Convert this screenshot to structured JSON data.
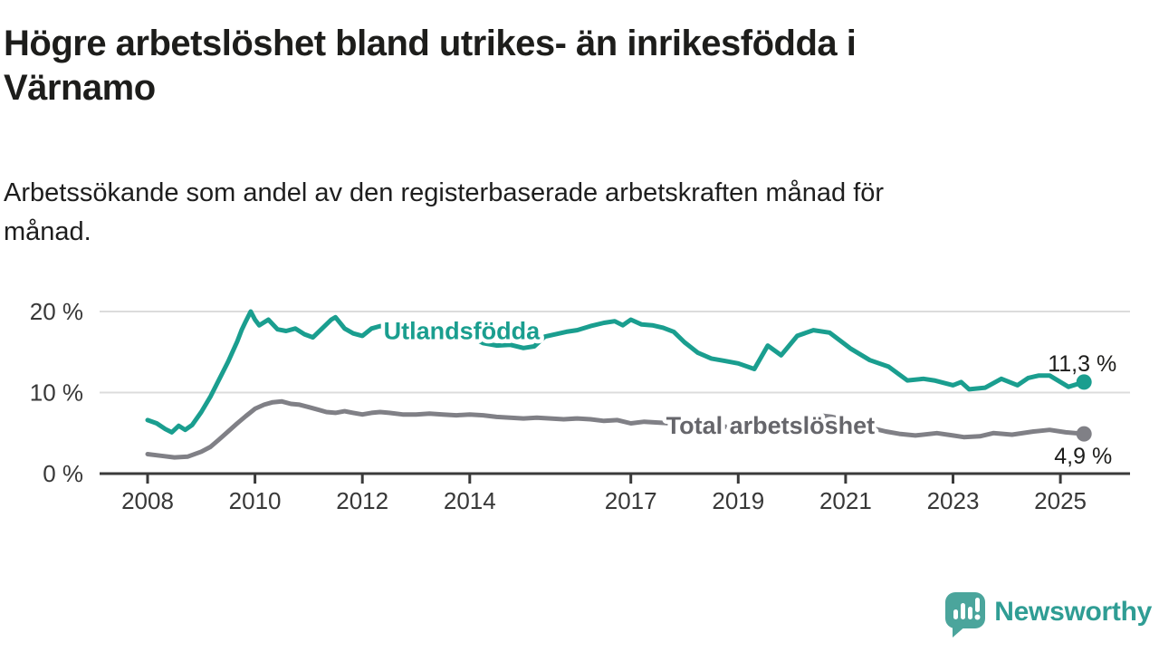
{
  "chart_data": {
    "type": "line",
    "title": "Högre arbetslöshet bland utrikes- än inrikesfödda i\nVärnamo",
    "subtitle": "Arbetssökande som andel av den registerbaserade arbetskraften månad för\nmånad.",
    "unit": "%",
    "grid": "horizontal-only",
    "legend_position": "inline-labels",
    "x_axis": {
      "ticks": [
        2008,
        2010,
        2012,
        2014,
        2017,
        2019,
        2021,
        2023,
        2025
      ],
      "tick_labels": [
        "2008",
        "2010",
        "2012",
        "2014",
        "2017",
        "2019",
        "2021",
        "2023",
        "2025"
      ],
      "range": [
        2007.1,
        2026.3
      ]
    },
    "y_axis": {
      "ticks": [
        0,
        10,
        20
      ],
      "tick_labels": [
        "0 %",
        "10 %",
        "20 %"
      ],
      "range": [
        0,
        21
      ]
    },
    "series": [
      {
        "id": "utlandsfodda",
        "name": "Utlandsfödda",
        "color": "#1a9e8f",
        "end_value": 11.3,
        "end_label": "11,3 %",
        "points": [
          [
            2008.0,
            6.6
          ],
          [
            2008.17,
            6.2
          ],
          [
            2008.33,
            5.5
          ],
          [
            2008.45,
            5.1
          ],
          [
            2008.58,
            5.9
          ],
          [
            2008.7,
            5.4
          ],
          [
            2008.83,
            6.0
          ],
          [
            2009.0,
            7.6
          ],
          [
            2009.17,
            9.5
          ],
          [
            2009.33,
            11.6
          ],
          [
            2009.5,
            13.8
          ],
          [
            2009.67,
            16.3
          ],
          [
            2009.75,
            17.7
          ],
          [
            2009.83,
            18.8
          ],
          [
            2009.92,
            20.0
          ],
          [
            2010.0,
            19.0
          ],
          [
            2010.08,
            18.3
          ],
          [
            2010.25,
            19.0
          ],
          [
            2010.42,
            17.8
          ],
          [
            2010.58,
            17.6
          ],
          [
            2010.75,
            17.9
          ],
          [
            2010.92,
            17.2
          ],
          [
            2011.08,
            16.8
          ],
          [
            2011.25,
            17.9
          ],
          [
            2011.42,
            19.0
          ],
          [
            2011.5,
            19.3
          ],
          [
            2011.67,
            17.9
          ],
          [
            2011.83,
            17.3
          ],
          [
            2012.0,
            17.0
          ],
          [
            2012.17,
            17.9
          ],
          [
            2012.33,
            18.2
          ],
          [
            2012.5,
            18.0
          ],
          [
            2012.75,
            17.8
          ],
          [
            2013.0,
            17.4
          ],
          [
            2013.25,
            17.6
          ],
          [
            2013.5,
            17.8
          ],
          [
            2013.75,
            17.3
          ],
          [
            2014.0,
            17.0
          ],
          [
            2014.25,
            16.1
          ],
          [
            2014.5,
            15.8
          ],
          [
            2014.75,
            15.9
          ],
          [
            2015.0,
            15.5
          ],
          [
            2015.2,
            15.7
          ],
          [
            2015.4,
            16.9
          ],
          [
            2015.6,
            17.2
          ],
          [
            2015.8,
            17.5
          ],
          [
            2016.0,
            17.7
          ],
          [
            2016.25,
            18.2
          ],
          [
            2016.5,
            18.6
          ],
          [
            2016.7,
            18.8
          ],
          [
            2016.85,
            18.3
          ],
          [
            2017.0,
            19.0
          ],
          [
            2017.2,
            18.4
          ],
          [
            2017.4,
            18.3
          ],
          [
            2017.6,
            18.0
          ],
          [
            2017.8,
            17.5
          ],
          [
            2018.0,
            16.2
          ],
          [
            2018.25,
            14.9
          ],
          [
            2018.5,
            14.2
          ],
          [
            2018.75,
            13.9
          ],
          [
            2019.0,
            13.6
          ],
          [
            2019.3,
            12.9
          ],
          [
            2019.55,
            15.8
          ],
          [
            2019.8,
            14.6
          ],
          [
            2020.1,
            17.0
          ],
          [
            2020.4,
            17.7
          ],
          [
            2020.7,
            17.4
          ],
          [
            2021.1,
            15.4
          ],
          [
            2021.45,
            14.0
          ],
          [
            2021.8,
            13.2
          ],
          [
            2022.15,
            11.5
          ],
          [
            2022.45,
            11.7
          ],
          [
            2022.65,
            11.5
          ],
          [
            2023.0,
            10.9
          ],
          [
            2023.15,
            11.3
          ],
          [
            2023.3,
            10.4
          ],
          [
            2023.6,
            10.6
          ],
          [
            2023.9,
            11.7
          ],
          [
            2024.2,
            10.9
          ],
          [
            2024.4,
            11.8
          ],
          [
            2024.6,
            12.1
          ],
          [
            2024.8,
            12.1
          ],
          [
            2025.15,
            10.7
          ],
          [
            2025.44,
            11.3
          ]
        ]
      },
      {
        "id": "total-arbetsloshet",
        "name": "Total arbetslöshet",
        "color": "#808086",
        "end_value": 4.9,
        "end_label": "4,9 %",
        "points": [
          [
            2008.0,
            2.4
          ],
          [
            2008.25,
            2.2
          ],
          [
            2008.5,
            2.0
          ],
          [
            2008.75,
            2.1
          ],
          [
            2009.0,
            2.7
          ],
          [
            2009.17,
            3.3
          ],
          [
            2009.33,
            4.2
          ],
          [
            2009.5,
            5.2
          ],
          [
            2009.67,
            6.2
          ],
          [
            2009.83,
            7.1
          ],
          [
            2010.0,
            8.0
          ],
          [
            2010.17,
            8.5
          ],
          [
            2010.33,
            8.8
          ],
          [
            2010.5,
            8.9
          ],
          [
            2010.67,
            8.6
          ],
          [
            2010.83,
            8.5
          ],
          [
            2011.0,
            8.2
          ],
          [
            2011.17,
            7.9
          ],
          [
            2011.33,
            7.6
          ],
          [
            2011.5,
            7.5
          ],
          [
            2011.67,
            7.7
          ],
          [
            2011.83,
            7.5
          ],
          [
            2012.0,
            7.3
          ],
          [
            2012.17,
            7.5
          ],
          [
            2012.33,
            7.6
          ],
          [
            2012.5,
            7.5
          ],
          [
            2012.75,
            7.3
          ],
          [
            2013.0,
            7.3
          ],
          [
            2013.25,
            7.4
          ],
          [
            2013.5,
            7.3
          ],
          [
            2013.75,
            7.2
          ],
          [
            2014.0,
            7.3
          ],
          [
            2014.25,
            7.2
          ],
          [
            2014.5,
            7.0
          ],
          [
            2014.75,
            6.9
          ],
          [
            2015.0,
            6.8
          ],
          [
            2015.25,
            6.9
          ],
          [
            2015.5,
            6.8
          ],
          [
            2015.75,
            6.7
          ],
          [
            2016.0,
            6.8
          ],
          [
            2016.25,
            6.7
          ],
          [
            2016.5,
            6.5
          ],
          [
            2016.75,
            6.6
          ],
          [
            2017.0,
            6.2
          ],
          [
            2017.25,
            6.4
          ],
          [
            2017.5,
            6.3
          ],
          [
            2017.75,
            6.2
          ],
          [
            2018.0,
            6.0
          ],
          [
            2018.25,
            5.9
          ],
          [
            2018.5,
            5.9
          ],
          [
            2018.75,
            5.8
          ],
          [
            2019.0,
            5.7
          ],
          [
            2019.25,
            5.5
          ],
          [
            2019.5,
            5.6
          ],
          [
            2019.75,
            5.7
          ],
          [
            2020.0,
            5.9
          ],
          [
            2020.25,
            6.9
          ],
          [
            2020.5,
            7.2
          ],
          [
            2020.75,
            7.0
          ],
          [
            2021.0,
            6.6
          ],
          [
            2021.25,
            6.1
          ],
          [
            2021.5,
            5.6
          ],
          [
            2021.75,
            5.2
          ],
          [
            2022.0,
            4.9
          ],
          [
            2022.3,
            4.7
          ],
          [
            2022.7,
            5.0
          ],
          [
            2023.0,
            4.7
          ],
          [
            2023.2,
            4.5
          ],
          [
            2023.5,
            4.6
          ],
          [
            2023.75,
            5.0
          ],
          [
            2024.1,
            4.8
          ],
          [
            2024.5,
            5.2
          ],
          [
            2024.8,
            5.4
          ],
          [
            2025.1,
            5.1
          ],
          [
            2025.44,
            4.9
          ]
        ]
      }
    ],
    "series_labels": [
      {
        "text": "Utlandsfödda",
        "x": 2013.85,
        "y": 17.6,
        "color": "#1a9e8f"
      },
      {
        "text": "Total arbetslöshet",
        "x": 2019.6,
        "y": 5.9,
        "color": "#66666b"
      }
    ]
  },
  "colors": {
    "accent_teal": "#1a9e8f",
    "series_gray": "#808086",
    "grid": "#dcdcdc",
    "axis": "#3a3a3a",
    "tick_text": "#383838",
    "value_text": "#1d1d1b",
    "logo_bubble": "#4ba59c",
    "logo_text": "#2f9d94"
  },
  "branding": {
    "logo_text": "Newsworthy",
    "logo_icon": "bar-chart-speech-bubble-icon"
  }
}
